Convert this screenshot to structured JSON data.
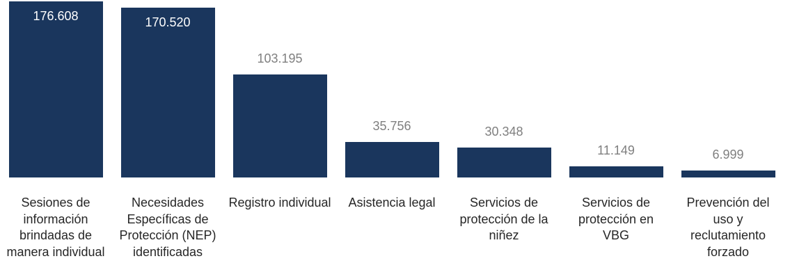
{
  "colors": {
    "bar": "#1a365d",
    "value_outside": "#7f7f7f",
    "value_inside": "#ffffff",
    "category_text": "#262626"
  },
  "chart_data": {
    "type": "bar",
    "orientation": "vertical",
    "title": "",
    "xlabel": "",
    "ylabel": "",
    "grid": false,
    "legend": "none",
    "categories": [
      "Sesiones de información brindadas de manera individual",
      "Necesidades Específicas de Protección (NEP) identificadas",
      "Registro individual",
      "Asistencia legal",
      "Servicios de protección de la niñez",
      "Servicios de protección en VBG",
      "Prevención del uso y reclutamiento forzado"
    ],
    "values": [
      176608,
      170520,
      103195,
      35756,
      30348,
      11149,
      6999
    ],
    "data_labels": [
      "176.608",
      "170.520",
      "103.195",
      "35.756",
      "30.348",
      "11.149",
      "6.999"
    ],
    "ylim": [
      0,
      176608
    ]
  }
}
